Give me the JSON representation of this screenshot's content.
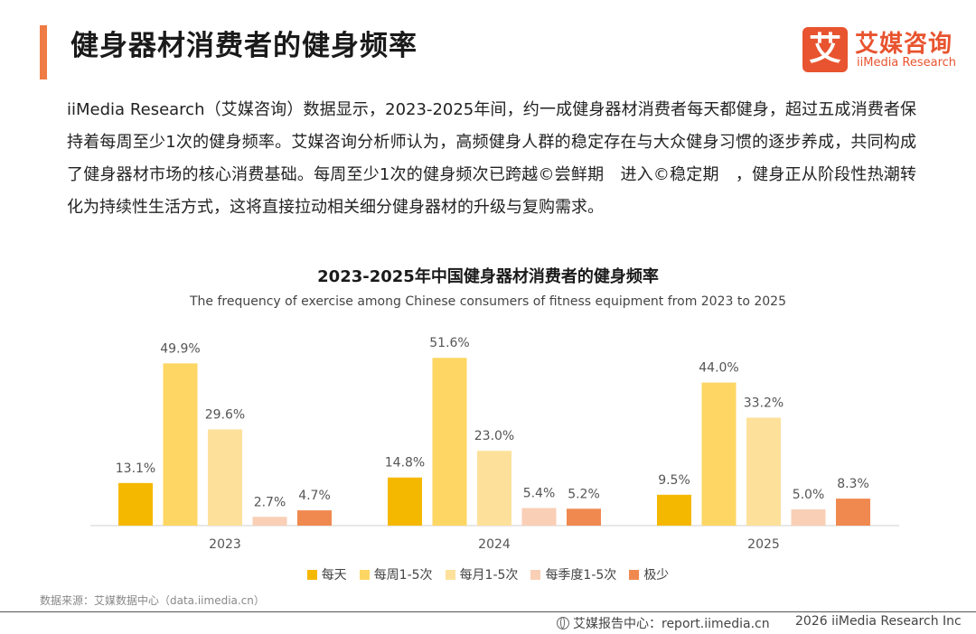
{
  "header": {
    "title": "健身器材消费者的健身频率"
  },
  "logo": {
    "glyph": "艾",
    "name_cn": "艾媒咨询",
    "name_en": "iiMedia Research"
  },
  "paragraph": "iiMedia Research（艾媒咨询）数据显示，2023-2025年间，约一成健身器材消费者每天都健身，超过五成消费者保持着每周至少1次的健身频率。艾媒咨询分析师认为，高频健身人群的稳定存在与大众健身习惯的逐步养成，共同构成了健身器材市场的核心消费基础。每周至少1次的健身频次已跨越©尝鲜期　进入©稳定期　，健身正从阶段性热潮转化为持续性生活方式，这将直接拉动相关细分健身器材的升级与复购需求。",
  "chart_data": {
    "type": "bar",
    "title": "2023-2025年中国健身器材消费者的健身频率",
    "subtitle": "The frequency of exercise among Chinese consumers of fitness equipment from 2023 to 2025",
    "categories": [
      "2023",
      "2024",
      "2025"
    ],
    "series": [
      {
        "name": "每天",
        "color": "#f5b800",
        "values": [
          13.1,
          14.8,
          9.5
        ]
      },
      {
        "name": "每周1-5次",
        "color": "#fdd663",
        "values": [
          49.9,
          51.6,
          44.0
        ]
      },
      {
        "name": "每月1-5次",
        "color": "#fde19b",
        "values": [
          29.6,
          23.0,
          33.2
        ]
      },
      {
        "name": "每季度1-5次",
        "color": "#f9cfb6",
        "values": [
          2.7,
          5.4,
          5.0
        ]
      },
      {
        "name": "极少",
        "color": "#f0894f",
        "values": [
          4.7,
          5.2,
          8.3
        ]
      }
    ],
    "value_suffix": "%",
    "ylim": [
      0,
      55
    ],
    "legend_position": "bottom"
  },
  "source": "数据来源：艾媒数据中心（data.iimedia.cn）",
  "footer": {
    "report_site": "艾媒报告中心：report.iimedia.cn",
    "copyright": "2026  iiMedia Research  Inc"
  }
}
